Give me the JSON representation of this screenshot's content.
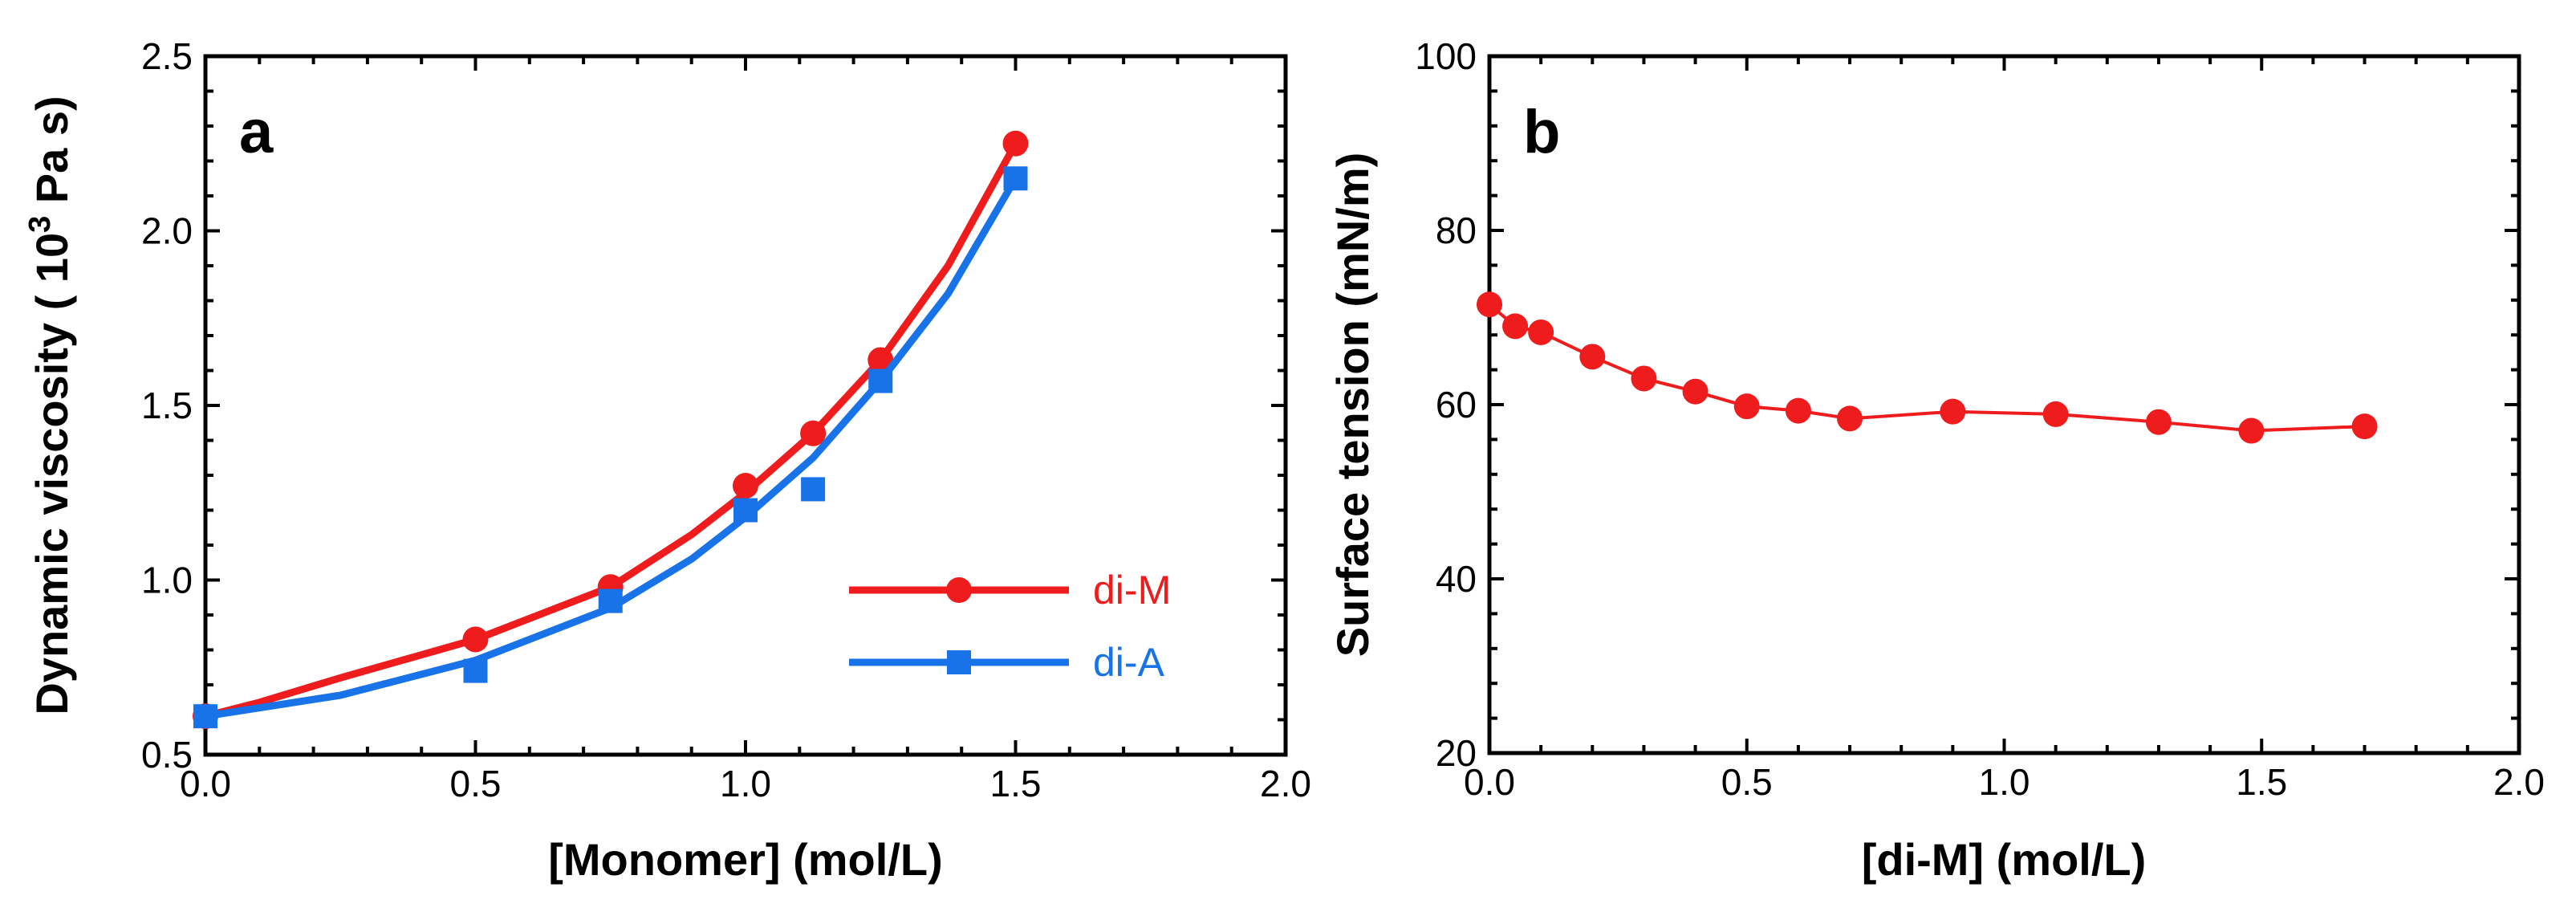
{
  "chart_data": [
    {
      "type": "line",
      "panel_label": "a",
      "xlabel": "[Monomer] (mol/L)",
      "ylabel_main": "Dynamic viscosity ( 10",
      "ylabel_sup": "3",
      "ylabel_tail": " Pa s)",
      "xlim": [
        0.0,
        2.0
      ],
      "ylim": [
        0.5,
        2.5
      ],
      "xticks": [
        "0.0",
        "0.5",
        "1.0",
        "1.5",
        "2.0"
      ],
      "yticks": [
        "0.5",
        "1.0",
        "1.5",
        "2.0",
        "2.5"
      ],
      "legend_position": "center-right",
      "series": [
        {
          "name": "di-M",
          "color": "#ee1c1c",
          "marker": "circle",
          "points": [
            [
              0.0,
              0.61
            ],
            [
              0.5,
              0.83
            ],
            [
              0.75,
              0.98
            ],
            [
              1.0,
              1.27
            ],
            [
              1.125,
              1.42
            ],
            [
              1.25,
              1.63
            ],
            [
              1.5,
              2.25
            ]
          ],
          "fit": [
            [
              0.0,
              0.61
            ],
            [
              0.1,
              0.65
            ],
            [
              0.25,
              0.72
            ],
            [
              0.5,
              0.83
            ],
            [
              0.75,
              0.98
            ],
            [
              0.9,
              1.13
            ],
            [
              1.0,
              1.25
            ],
            [
              1.125,
              1.42
            ],
            [
              1.25,
              1.63
            ],
            [
              1.375,
              1.9
            ],
            [
              1.5,
              2.25
            ]
          ]
        },
        {
          "name": "di-A",
          "color": "#1873e8",
          "marker": "square",
          "points": [
            [
              0.0,
              0.61
            ],
            [
              0.5,
              0.74
            ],
            [
              0.75,
              0.94
            ],
            [
              1.0,
              1.2
            ],
            [
              1.125,
              1.26
            ],
            [
              1.25,
              1.57
            ],
            [
              1.5,
              2.15
            ]
          ],
          "fit": [
            [
              0.0,
              0.61
            ],
            [
              0.25,
              0.67
            ],
            [
              0.5,
              0.77
            ],
            [
              0.75,
              0.92
            ],
            [
              0.9,
              1.06
            ],
            [
              1.0,
              1.18
            ],
            [
              1.125,
              1.35
            ],
            [
              1.25,
              1.57
            ],
            [
              1.375,
              1.82
            ],
            [
              1.5,
              2.15
            ]
          ]
        }
      ]
    },
    {
      "type": "line",
      "panel_label": "b",
      "xlabel": "[di-M] (mol/L)",
      "ylabel": "Surface tension (mN/m)",
      "xlim": [
        0.0,
        2.0
      ],
      "ylim": [
        20,
        100
      ],
      "xticks": [
        "0.0",
        "0.5",
        "1.0",
        "1.5",
        "2.0"
      ],
      "yticks": [
        "20",
        "40",
        "60",
        "80",
        "100"
      ],
      "series": [
        {
          "name": "di-M",
          "color": "#ee1c1c",
          "marker": "circle",
          "points": [
            [
              0.0,
              71.5
            ],
            [
              0.05,
              69.0
            ],
            [
              0.1,
              68.3
            ],
            [
              0.2,
              65.5
            ],
            [
              0.3,
              63.0
            ],
            [
              0.4,
              61.5
            ],
            [
              0.5,
              59.8
            ],
            [
              0.6,
              59.3
            ],
            [
              0.7,
              58.4
            ],
            [
              0.9,
              59.2
            ],
            [
              1.1,
              58.9
            ],
            [
              1.3,
              58.0
            ],
            [
              1.48,
              57.0
            ],
            [
              1.7,
              57.5
            ]
          ]
        }
      ]
    }
  ]
}
